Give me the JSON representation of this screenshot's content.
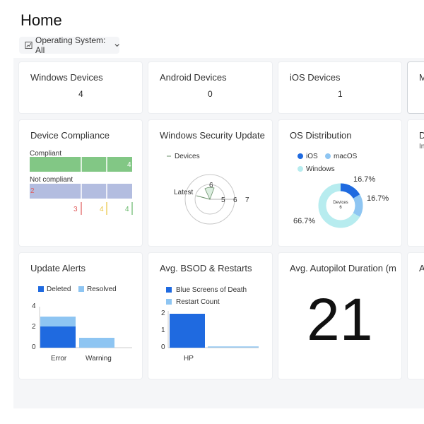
{
  "header": {
    "title": "Home",
    "filter_label": "Operating System: All"
  },
  "tiles_row1": {
    "windows": {
      "title": "Windows Devices",
      "value": "4"
    },
    "android": {
      "title": "Android Devices",
      "value": "0"
    },
    "ios": {
      "title": "iOS Devices",
      "value": "1"
    },
    "partial_title": "M"
  },
  "compliance": {
    "title": "Device Compliance",
    "compliant_label": "Compliant",
    "compliant_value": "4",
    "not_compliant_label": "Not compliant",
    "not_compliant_value": "2",
    "axis_values": [
      "3",
      "4",
      "4"
    ],
    "colors": {
      "compliant": "#82c785",
      "not_compliant": "#b3bde0",
      "axis1": "#e05a5a",
      "axis2": "#e8c440",
      "axis3": "#67b86a"
    }
  },
  "security": {
    "title": "Windows Security Update ...",
    "legend": "Devices",
    "latest_label": "Latest",
    "ring_labels": [
      "6",
      "5",
      "6",
      "7"
    ]
  },
  "os_distribution": {
    "title": "OS Distribution",
    "legend": [
      "iOS",
      "macOS",
      "Windows"
    ],
    "center_label": "Devices",
    "center_value": "6",
    "pct_ios": "16.7%",
    "pct_macos": "16.7%",
    "pct_windows": "66.7%",
    "colors": {
      "ios": "#1f6ae0",
      "macos": "#8ec5f2",
      "windows": "#b7ecef"
    }
  },
  "partial_tile_2": {
    "title": "D",
    "sub": "In"
  },
  "update_alerts": {
    "title": "Update Alerts",
    "legend": [
      "Deleted",
      "Resolved"
    ],
    "y_ticks": [
      "4",
      "2",
      "0"
    ],
    "categories": [
      "Error",
      "Warning"
    ]
  },
  "bsod": {
    "title": "Avg. BSOD & Restarts",
    "legend": [
      "Blue Screens of Death",
      "Restart Count"
    ],
    "y_ticks": [
      "2",
      "1",
      "0"
    ],
    "categories": [
      "HP"
    ]
  },
  "autopilot": {
    "title": "Avg. Autopilot Duration (m...",
    "value": "21"
  },
  "partial_tile_3": {
    "title": "A"
  },
  "chart_data": [
    {
      "type": "bar",
      "title": "Device Compliance",
      "categories": [
        "Compliant",
        "Not compliant"
      ],
      "values": [
        4,
        2
      ]
    },
    {
      "type": "pie",
      "title": "OS Distribution",
      "categories": [
        "iOS",
        "macOS",
        "Windows"
      ],
      "values": [
        16.7,
        16.7,
        66.7
      ]
    },
    {
      "type": "bar",
      "title": "Update Alerts",
      "categories": [
        "Error",
        "Warning"
      ],
      "series": [
        {
          "name": "Deleted",
          "values": [
            2,
            0
          ]
        },
        {
          "name": "Resolved",
          "values": [
            1,
            1
          ]
        }
      ],
      "ylim": [
        0,
        4
      ]
    },
    {
      "type": "bar",
      "title": "Avg. BSOD & Restarts",
      "categories": [
        "HP"
      ],
      "series": [
        {
          "name": "Blue Screens of Death",
          "values": [
            2
          ]
        },
        {
          "name": "Restart Count",
          "values": [
            0
          ]
        }
      ],
      "ylim": [
        0,
        2
      ]
    }
  ]
}
